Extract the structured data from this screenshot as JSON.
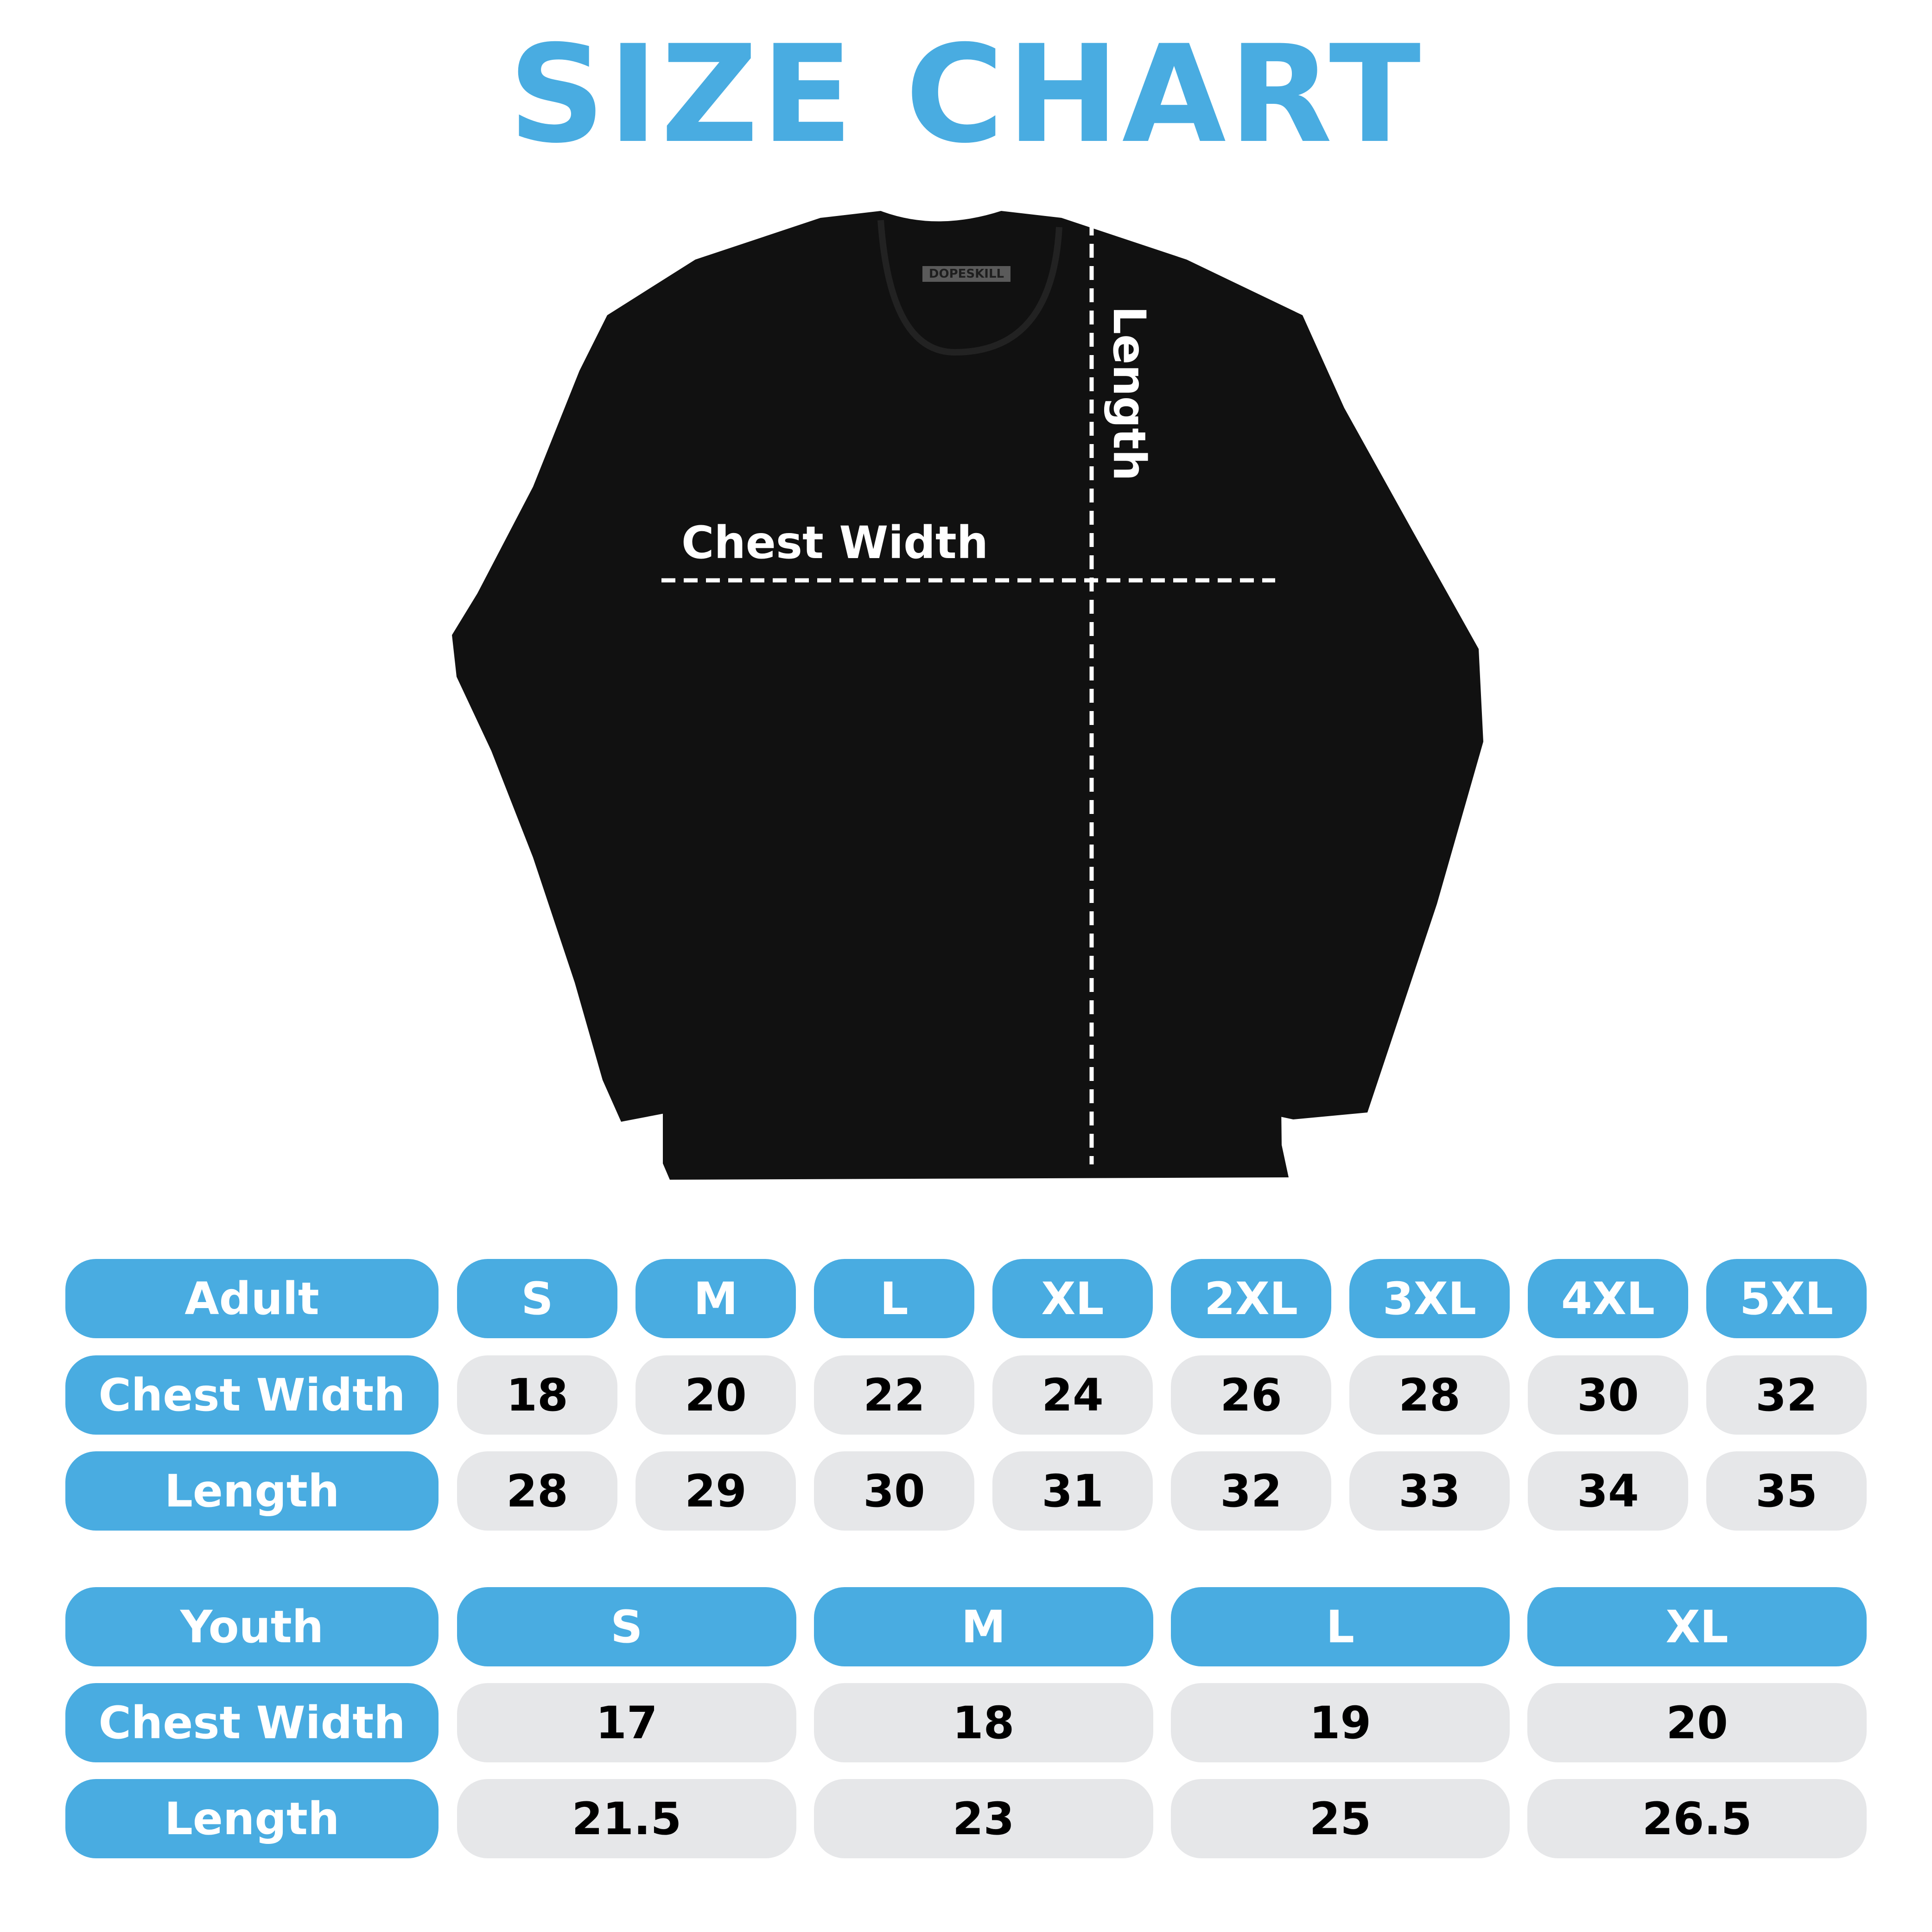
{
  "title": "SIZE CHART",
  "brand_tag": "DOPESKILL",
  "diagram": {
    "chest_label": "Chest Width",
    "length_label": "Length"
  },
  "colors": {
    "accent": "#49ACE1",
    "cell": "#E6E7E9",
    "shirt": "#111111"
  },
  "adult": {
    "header": "Adult",
    "sizes": [
      "S",
      "M",
      "L",
      "XL",
      "2XL",
      "3XL",
      "4XL",
      "5XL"
    ],
    "rows": [
      {
        "label": "Chest Width",
        "values": [
          "18",
          "20",
          "22",
          "24",
          "26",
          "28",
          "30",
          "32"
        ]
      },
      {
        "label": "Length",
        "values": [
          "28",
          "29",
          "30",
          "31",
          "32",
          "33",
          "34",
          "35"
        ]
      }
    ]
  },
  "youth": {
    "header": "Youth",
    "sizes": [
      "S",
      "M",
      "L",
      "XL"
    ],
    "rows": [
      {
        "label": "Chest Width",
        "values": [
          "17",
          "18",
          "19",
          "20"
        ]
      },
      {
        "label": "Length",
        "values": [
          "21.5",
          "23",
          "25",
          "26.5"
        ]
      }
    ]
  }
}
